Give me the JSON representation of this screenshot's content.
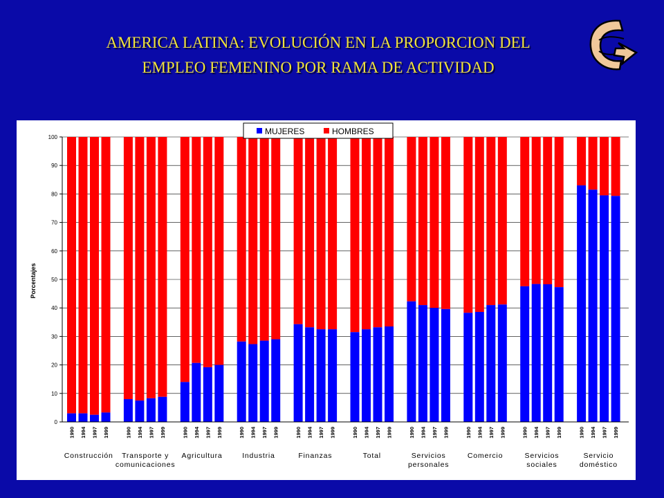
{
  "title": {
    "line1": "AMERICA LATINA: EVOLUCIÓN EN LA PROPORCION DEL",
    "line2": "EMPLEO FEMENINO POR RAMA DE ACTIVIDAD"
  },
  "colors": {
    "background": "#0a0aa8",
    "title": "#f0e23c",
    "mujeres": "#0000ff",
    "hombres": "#ff0000"
  },
  "logo_icon": "curved-arrow-icon",
  "chart_data": {
    "type": "bar",
    "stacked": true,
    "ylabel": "Porcentajes",
    "ylim": [
      0,
      100
    ],
    "yticks": [
      0,
      10,
      20,
      30,
      40,
      50,
      60,
      70,
      80,
      90,
      100
    ],
    "years": [
      "1990",
      "1994",
      "1997",
      "1999"
    ],
    "legend": {
      "position": "top-center",
      "entries": [
        "MUJERES",
        "HOMBRES"
      ]
    },
    "groups": [
      {
        "label": [
          "Construcción"
        ],
        "mujeres": [
          3,
          3,
          2.5,
          3.3
        ]
      },
      {
        "label": [
          "Transporte y",
          "comunicaciones"
        ],
        "mujeres": [
          8,
          7.5,
          8.3,
          8.8
        ]
      },
      {
        "label": [
          "Agricultura"
        ],
        "mujeres": [
          14,
          20.7,
          19.2,
          20
        ]
      },
      {
        "label": [
          "Industria"
        ],
        "mujeres": [
          28.2,
          27.3,
          28.5,
          29
        ]
      },
      {
        "label": [
          "Finanzas"
        ],
        "mujeres": [
          34.3,
          33.2,
          32.5,
          32.5
        ]
      },
      {
        "label": [
          "Total"
        ],
        "mujeres": [
          31.5,
          32.5,
          33.2,
          33.5
        ]
      },
      {
        "label": [
          "Servicios",
          "personales"
        ],
        "mujeres": [
          42.3,
          41,
          40,
          39.6
        ]
      },
      {
        "label": [
          "Comercio"
        ],
        "mujeres": [
          38.3,
          38.6,
          41,
          41.2
        ]
      },
      {
        "label": [
          "Servicios",
          "sociales"
        ],
        "mujeres": [
          47.6,
          48.4,
          48.3,
          47.3
        ]
      },
      {
        "label": [
          "Servicio",
          "doméstico"
        ],
        "mujeres": [
          83,
          81.5,
          79.5,
          79.3
        ]
      }
    ]
  }
}
